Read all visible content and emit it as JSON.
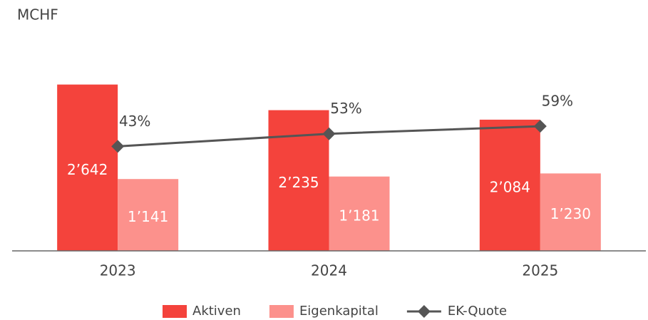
{
  "chart_data": {
    "type": "bar+line",
    "y_label": "MCHF",
    "categories": [
      "2023",
      "2024",
      "2025"
    ],
    "series": [
      {
        "name": "Aktiven",
        "type": "bar",
        "color": "#f4433c",
        "values": [
          2642,
          2235,
          2084
        ],
        "value_labels": [
          "2’642",
          "2’235",
          "2’084"
        ]
      },
      {
        "name": "Eigenkapital",
        "type": "bar",
        "color": "#fc918c",
        "values": [
          1141,
          1181,
          1230
        ],
        "value_labels": [
          "1’141",
          "1’181",
          "1’230"
        ]
      },
      {
        "name": "EK-Quote",
        "type": "line",
        "axis": "y2",
        "color": "#555555",
        "values": [
          43,
          53,
          59
        ],
        "value_labels": [
          "43%",
          "53%",
          "59%"
        ]
      }
    ],
    "ylim": [
      0,
      3000
    ],
    "y2lim": [
      -40,
      110
    ],
    "legend": "bottom"
  }
}
